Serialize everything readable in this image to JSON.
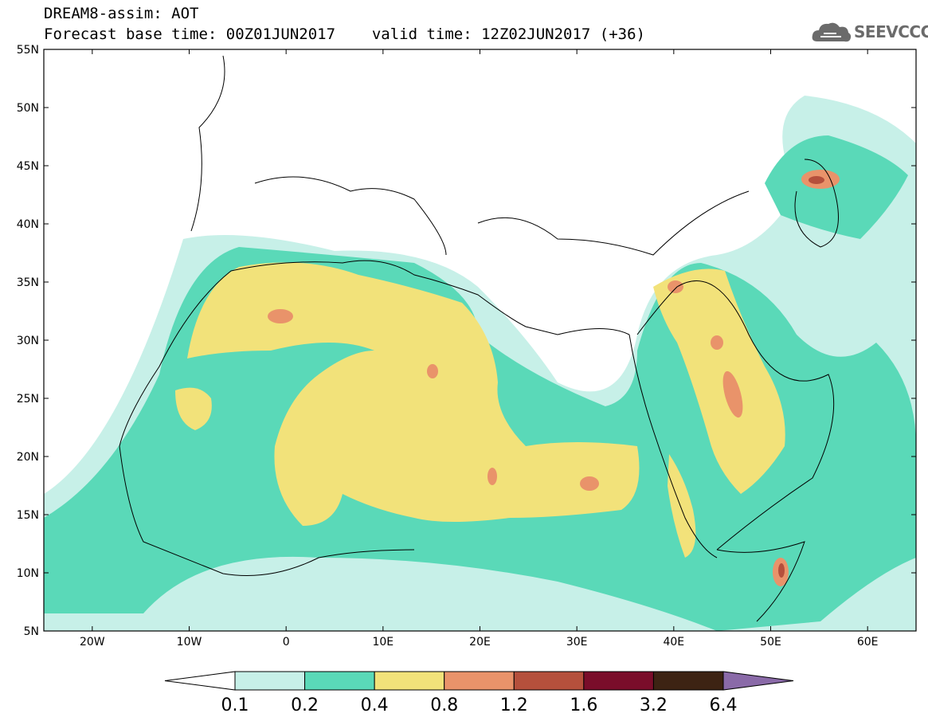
{
  "header": {
    "title_line1": "DREAM8-assim: AOT",
    "base_time_label": "Forecast base time: 00Z01JUN2017",
    "valid_time_label": "valid time: 12Z02JUN2017 (+36)"
  },
  "logo": {
    "text": "SEEVCCC",
    "icon": "cloud-icon"
  },
  "axes": {
    "lat_labels": [
      "55N",
      "50N",
      "45N",
      "40N",
      "35N",
      "30N",
      "25N",
      "20N",
      "15N",
      "10N",
      "5N"
    ],
    "lon_labels": [
      "20W",
      "10W",
      "0",
      "10E",
      "20E",
      "30E",
      "40E",
      "50E",
      "60E"
    ]
  },
  "colorbar": {
    "labels": [
      "0.1",
      "0.2",
      "0.4",
      "0.8",
      "1.2",
      "1.6",
      "3.2",
      "6.4"
    ],
    "colors": [
      "#ffffff",
      "#c7f0e8",
      "#5ad9b8",
      "#f2e27a",
      "#e9936a",
      "#b5503c",
      "#7a0d2a",
      "#3d2313",
      "#8a6aa8"
    ]
  },
  "map": {
    "extent": {
      "lon_min": -25,
      "lon_max": 65,
      "lat_min": 5,
      "lat_max": 55
    },
    "field": "Aerosol Optical Thickness"
  }
}
